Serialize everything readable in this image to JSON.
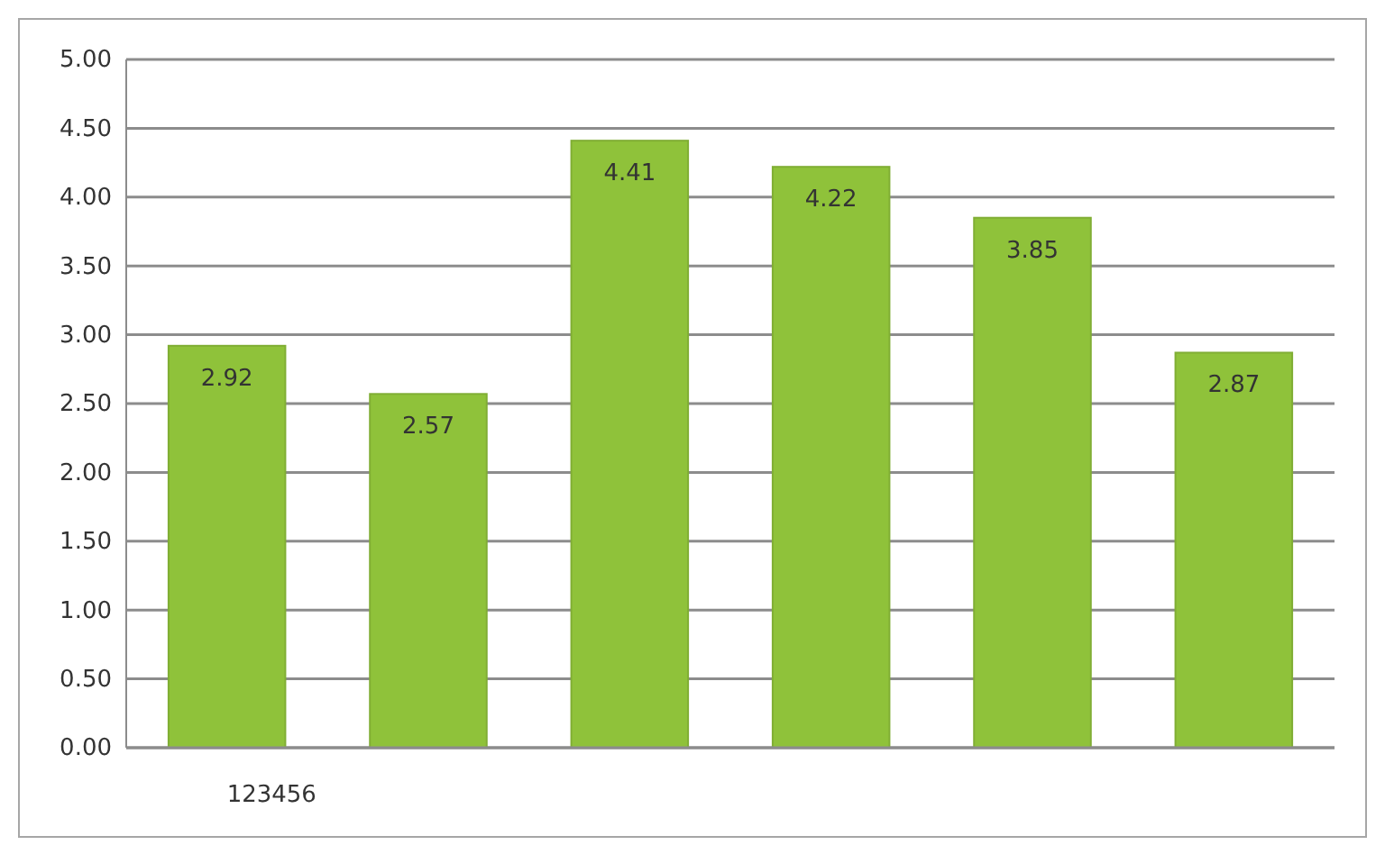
{
  "chart_data": {
    "type": "bar",
    "categories": [
      "123456",
      null,
      null,
      null,
      null,
      null
    ],
    "values": [
      2.92,
      2.57,
      4.41,
      4.22,
      3.85,
      2.87
    ],
    "color": "#8fc23a",
    "ylim": [
      0,
      5
    ],
    "yticks": [
      {
        "value": 0,
        "label": "0.00"
      },
      {
        "value": 0.5,
        "label": "0.50"
      },
      {
        "value": 1,
        "label": "1.00"
      },
      {
        "value": 1.5,
        "label": "1.50"
      },
      {
        "value": 2,
        "label": "2.00"
      },
      {
        "value": 2.5,
        "label": "2.50"
      },
      {
        "value": 3,
        "label": "3.00"
      },
      {
        "value": 3.5,
        "label": "3.50"
      },
      {
        "value": 4,
        "label": "4.00"
      },
      {
        "value": 4.5,
        "label": "4.50"
      },
      {
        "value": 5,
        "label": "5.00"
      }
    ],
    "grid": "y",
    "data_labels": true
  }
}
